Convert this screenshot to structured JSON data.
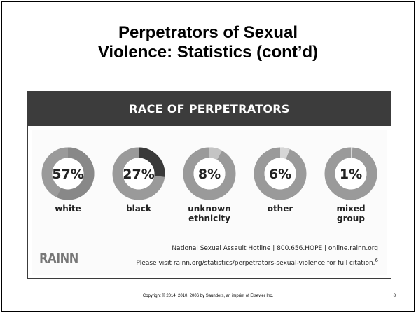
{
  "slide": {
    "title_line1": "Perpetrators of Sexual",
    "title_line2": "Violence: Statistics (cont’d)",
    "copyright": "Copyright © 2014, 2010, 2006 by Saunders, an imprint of Elsevier Inc.",
    "page_number": "8"
  },
  "infographic": {
    "header": "RACE OF PERPETRATORS",
    "logo": "RAINN",
    "hotline": "National Sexual Assault Hotline | 800.656.HOPE | online.rainn.org",
    "visit_prefix": "Please visit ",
    "visit_link": "rainn.org/statistics/perpetrators-sexual-violence",
    "visit_suffix": " for full citation.",
    "citation_mark": "6"
  },
  "chart_data": {
    "type": "pie",
    "title": "RACE OF PERPETRATORS",
    "categories": [
      "white",
      "black",
      "unknown ethnicity",
      "other",
      "mixed group"
    ],
    "values": [
      57,
      27,
      8,
      6,
      1
    ],
    "labels": [
      "57%",
      "27%",
      "8%",
      "6%",
      "1%"
    ],
    "label_lines": [
      [
        "white"
      ],
      [
        "black"
      ],
      [
        "unknown",
        "ethnicity"
      ],
      [
        "other"
      ],
      [
        "mixed",
        "group"
      ]
    ],
    "colors": {
      "ring_base": "#9a9a9a",
      "highlight": [
        "#888888",
        "#3a3a3a",
        "#c4c4c4",
        "#d6d6d6",
        "#d9d9d9"
      ],
      "text": "#222222"
    }
  }
}
